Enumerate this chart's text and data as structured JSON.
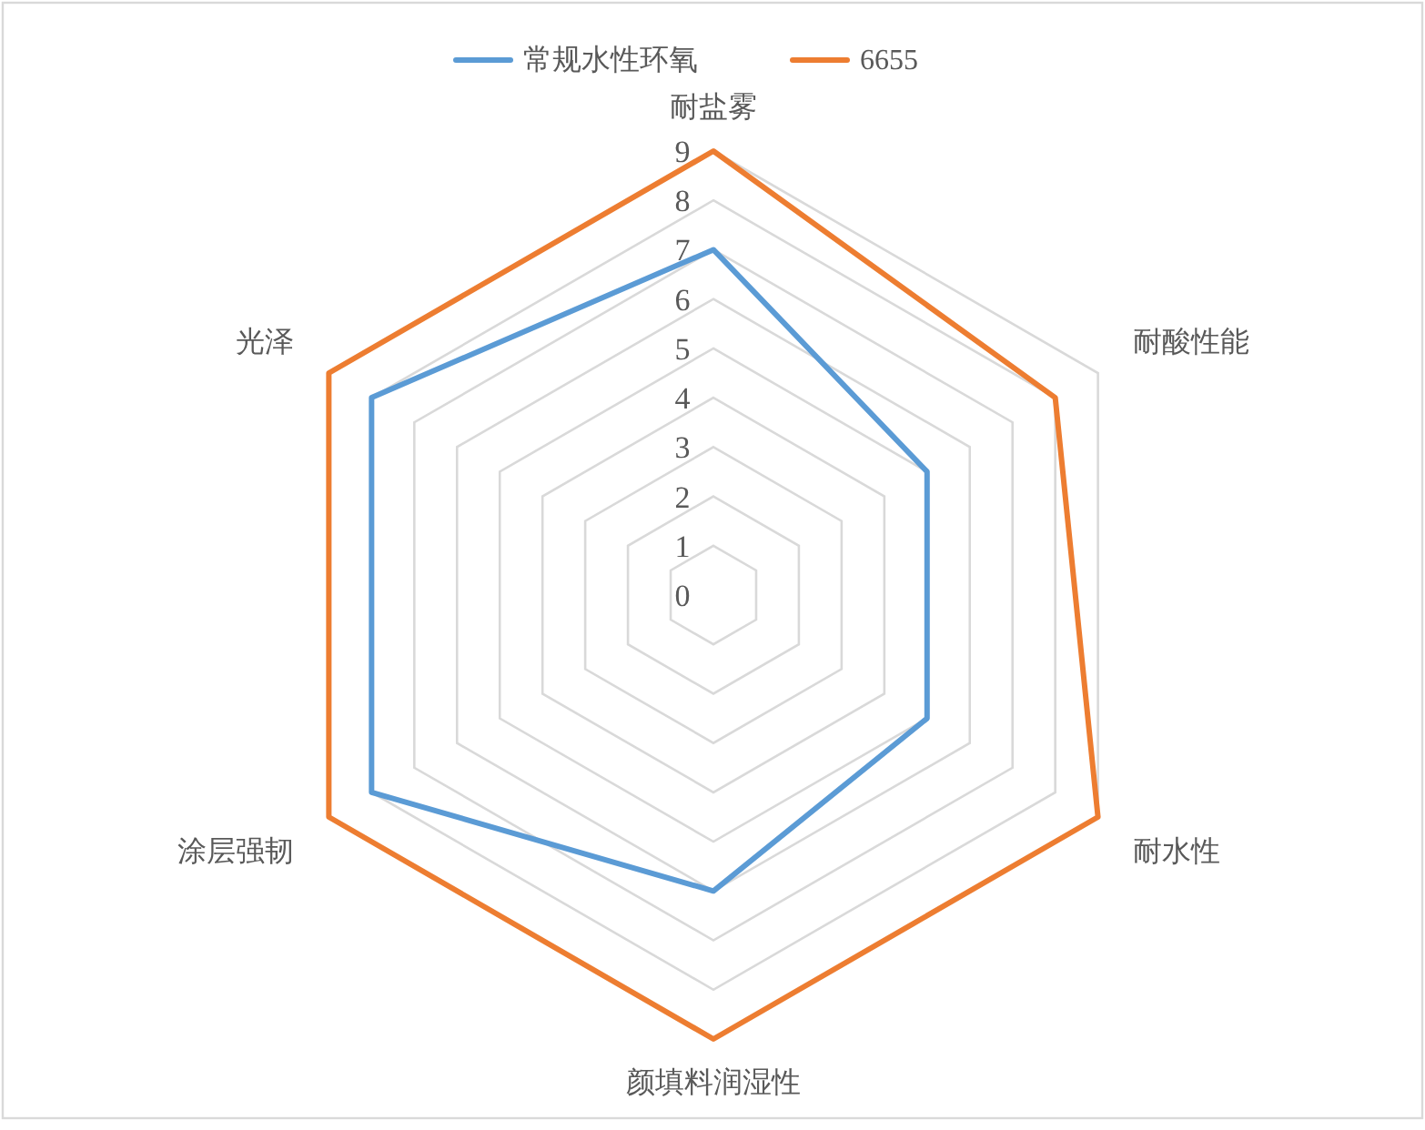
{
  "chart_data": {
    "type": "radar",
    "categories": [
      "耐盐雾",
      "耐酸性能",
      "耐水性",
      "颜填料润湿性",
      "涂层强韧",
      "光泽"
    ],
    "series": [
      {
        "name": "常规水性环氧",
        "color": "#5b9bd5",
        "values": [
          7,
          5,
          5,
          6,
          8,
          8
        ]
      },
      {
        "name": "6655",
        "color": "#ed7d31",
        "values": [
          9,
          8,
          9,
          9,
          9,
          9
        ]
      }
    ],
    "ylim": [
      0,
      9
    ],
    "yticks": [
      0,
      1,
      2,
      3,
      4,
      5,
      6,
      7,
      8,
      9
    ],
    "grid": true,
    "legend": "top"
  }
}
